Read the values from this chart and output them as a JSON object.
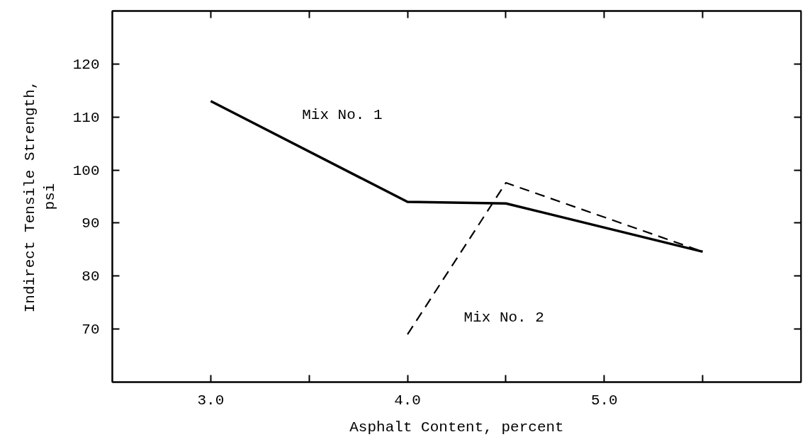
{
  "chart_data": {
    "type": "line",
    "xlabel": "Asphalt Content, percent",
    "ylabel": "Indirect Tensile Strength,\npsi",
    "x": [
      3.0,
      4.0,
      4.5,
      5.5
    ],
    "series": [
      {
        "name": "Mix No. 1",
        "color": "#000000",
        "line_style": "solid",
        "values": [
          113,
          94,
          93.7,
          84.6
        ]
      },
      {
        "name": "Mix No. 2",
        "color": "#000000",
        "line_style": "dashed",
        "values": [
          null,
          69,
          97.6,
          84.6
        ]
      }
    ],
    "xlim": [
      2.5,
      6.0
    ],
    "ylim": [
      60,
      130
    ],
    "xticks": [
      {
        "value": 3,
        "label": "3.0"
      },
      {
        "value": 3.5,
        "label": null
      },
      {
        "value": 4,
        "label": "4.0"
      },
      {
        "value": 4.5,
        "label": null
      },
      {
        "value": 5,
        "label": "5.0"
      },
      {
        "value": 5.5,
        "label": null
      }
    ],
    "yticks": [
      70,
      80,
      90,
      100,
      110,
      120
    ],
    "grid": false,
    "marker": "none"
  }
}
